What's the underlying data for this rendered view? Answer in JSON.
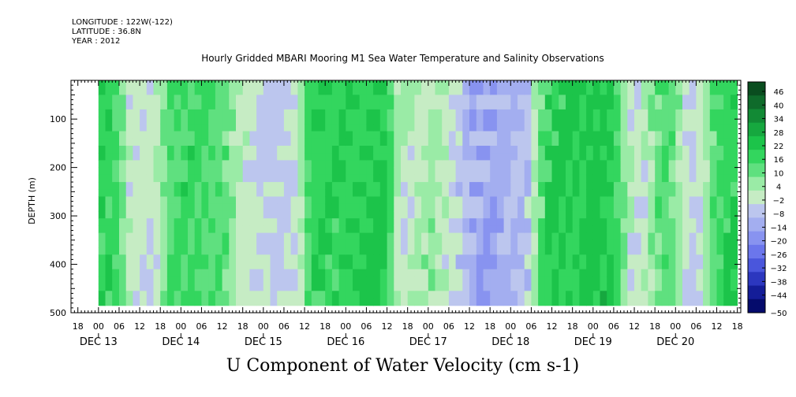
{
  "meta": {
    "longitude": "LONGITUDE : 122W(-122)",
    "latitude": "LATITUDE : 36.8N",
    "year": "YEAR : 2012"
  },
  "chart_data": {
    "type": "heatmap",
    "title": "Hourly Gridded MBARI Mooring M1 Sea Water Temperature and Salinity Observations",
    "variable_label": "U Component of Water Velocity (cm s-1)",
    "ylabel": "DEPTH (m)",
    "y_axis": {
      "inverted": true,
      "ylim": [
        500,
        20
      ],
      "ticks": [
        100,
        200,
        300,
        400,
        500
      ],
      "tick_labels": [
        "100",
        "200",
        "300",
        "400",
        "500"
      ],
      "data_range": [
        20,
        485
      ]
    },
    "x_axis": {
      "start": "2012-12-12 16:00",
      "end": "2012-12-20 19:00",
      "hour_ticks": [
        "18",
        "00",
        "06",
        "12",
        "18",
        "00",
        "06",
        "12",
        "18",
        "00",
        "06",
        "12",
        "18",
        "00",
        "06",
        "12",
        "18",
        "00",
        "06",
        "12",
        "18",
        "00",
        "06",
        "12",
        "18",
        "00",
        "06",
        "12",
        "18",
        "00",
        "06",
        "12",
        "18"
      ],
      "day_labels": [
        "DEC 13",
        "DEC 14",
        "DEC 15",
        "DEC 16",
        "DEC 17",
        "DEC 18",
        "DEC 19",
        "DEC 20"
      ]
    },
    "colorbar": {
      "levels": [
        46,
        40,
        34,
        28,
        22,
        16,
        10,
        4,
        -2,
        -8,
        -14,
        -20,
        -26,
        -32,
        -38,
        -44,
        -50
      ],
      "colors": [
        "#0a4d1f",
        "#0f6b2b",
        "#128a35",
        "#16a83f",
        "#1cc44a",
        "#33d65e",
        "#5fe07f",
        "#9aeba6",
        "#c6ecc4",
        "#bcc6ee",
        "#a3aef0",
        "#8893f0",
        "#6b76ec",
        "#4a56dc",
        "#2c37bf",
        "#141d98",
        "#050b6c"
      ]
    },
    "pattern": {
      "description_free": true,
      "blue_bands": [
        {
          "center": "2012-12-13 12:00",
          "value": -8
        },
        {
          "center": "2012-12-14 18:00",
          "value": -6
        },
        {
          "center": "2012-12-15 03:00",
          "value": -10
        },
        {
          "center": "2012-12-16 20:00",
          "value": -8
        },
        {
          "center": "2012-12-17 04:00",
          "value": -12
        },
        {
          "center": "2012-12-17 16:00",
          "value": -18
        },
        {
          "center": "2012-12-18 01:00",
          "value": -14
        },
        {
          "center": "2012-12-19 12:00",
          "value": -10
        },
        {
          "center": "2012-12-20 04:00",
          "value": -12
        }
      ],
      "green_bands": [
        {
          "center": "2012-12-13 00:00",
          "value": 14
        },
        {
          "center": "2012-12-14 00:00",
          "value": 12
        },
        {
          "center": "2012-12-14 10:00",
          "value": 10
        },
        {
          "center": "2012-12-15 18:00",
          "value": 14
        },
        {
          "center": "2012-12-16 06:00",
          "value": 16
        },
        {
          "center": "2012-12-17 00:00",
          "value": 12
        },
        {
          "center": "2012-12-18 12:00",
          "value": 14
        },
        {
          "center": "2012-12-19 03:00",
          "value": 18
        },
        {
          "center": "2012-12-19 20:00",
          "value": 12
        },
        {
          "center": "2012-12-20 12:00",
          "value": 14
        }
      ]
    }
  }
}
